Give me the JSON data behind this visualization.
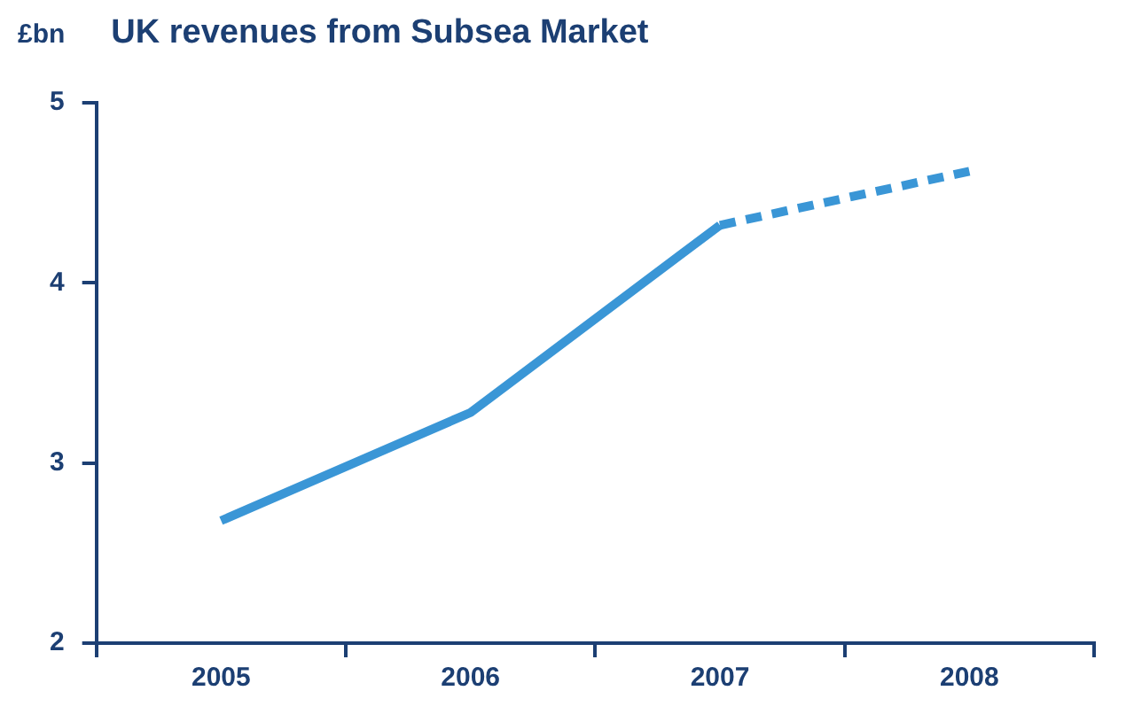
{
  "chart_data": {
    "type": "line",
    "title": "UK revenues from Subsea Market",
    "ylabel": "£bn",
    "categories": [
      "2005",
      "2006",
      "2007",
      "2008"
    ],
    "series": [
      {
        "color": "#3a96d6",
        "values": [
          2.68,
          3.28,
          4.32,
          null
        ],
        "line_style": "solid"
      },
      {
        "color": "#3a96d6",
        "values": [
          null,
          null,
          4.32,
          4.62
        ],
        "line_style": "dashed"
      }
    ],
    "ylim": [
      2,
      5
    ],
    "yticks": [
      2,
      3,
      4,
      5
    ],
    "grid": false,
    "legend": false,
    "marker": "none"
  }
}
